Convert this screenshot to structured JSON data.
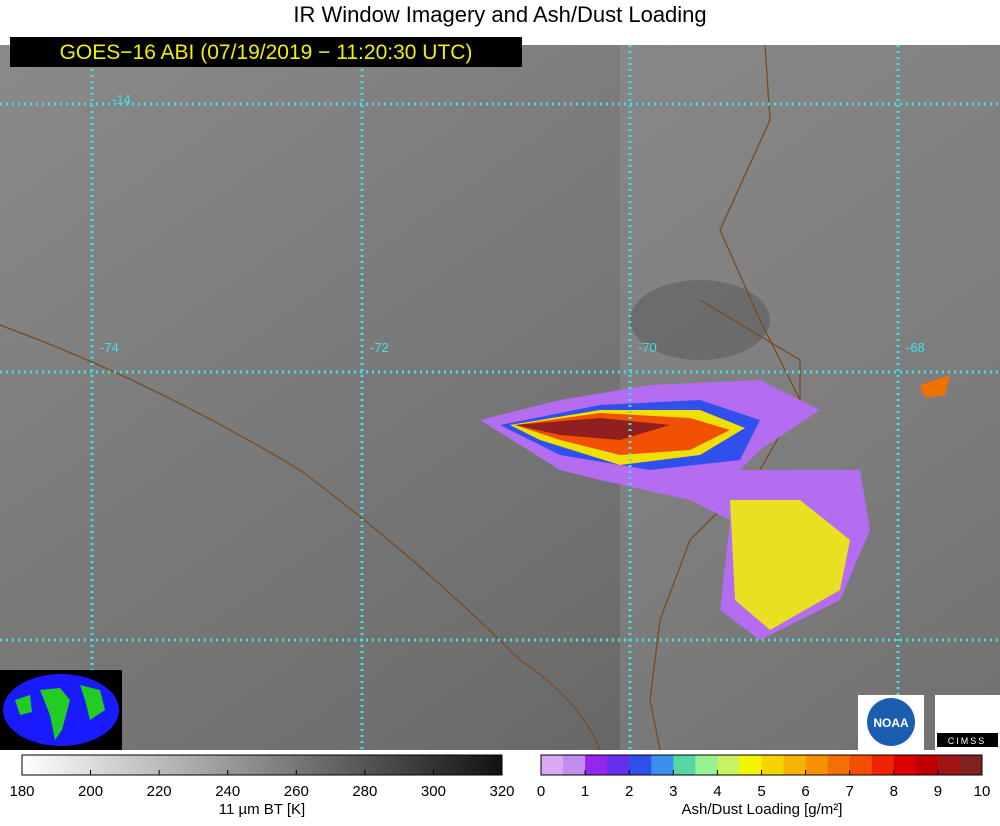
{
  "title": "IR Window Imagery and Ash/Dust Loading",
  "timestamp": "GOES−16 ABI (07/19/2019 − 11:20:30 UTC)",
  "grid_labels": {
    "lat": [
      "-14"
    ],
    "lon": [
      "-74",
      "-72",
      "-70",
      "-68"
    ]
  },
  "logos": {
    "noaa": "NOAA",
    "cimss": "CIMSS"
  },
  "colorbars": [
    {
      "label": "11 µm BT [K]",
      "range": [
        180,
        320
      ],
      "ticks": [
        180,
        200,
        220,
        240,
        260,
        280,
        300,
        320
      ]
    },
    {
      "label": "Ash/Dust Loading [g/m²]",
      "range": [
        0,
        10
      ],
      "ticks": [
        0,
        1,
        2,
        3,
        4,
        5,
        6,
        7,
        8,
        9,
        10
      ],
      "colors": [
        "#dca8f4",
        "#c48cf0",
        "#9626ee",
        "#6430ee",
        "#3050ee",
        "#3a90ee",
        "#56d6a4",
        "#98f294",
        "#c8f262",
        "#f4f400",
        "#f4d400",
        "#f4b400",
        "#f49200",
        "#f47000",
        "#f44e00",
        "#f02400",
        "#dc0000",
        "#c00000",
        "#a01414",
        "#7e2222"
      ]
    }
  ]
}
